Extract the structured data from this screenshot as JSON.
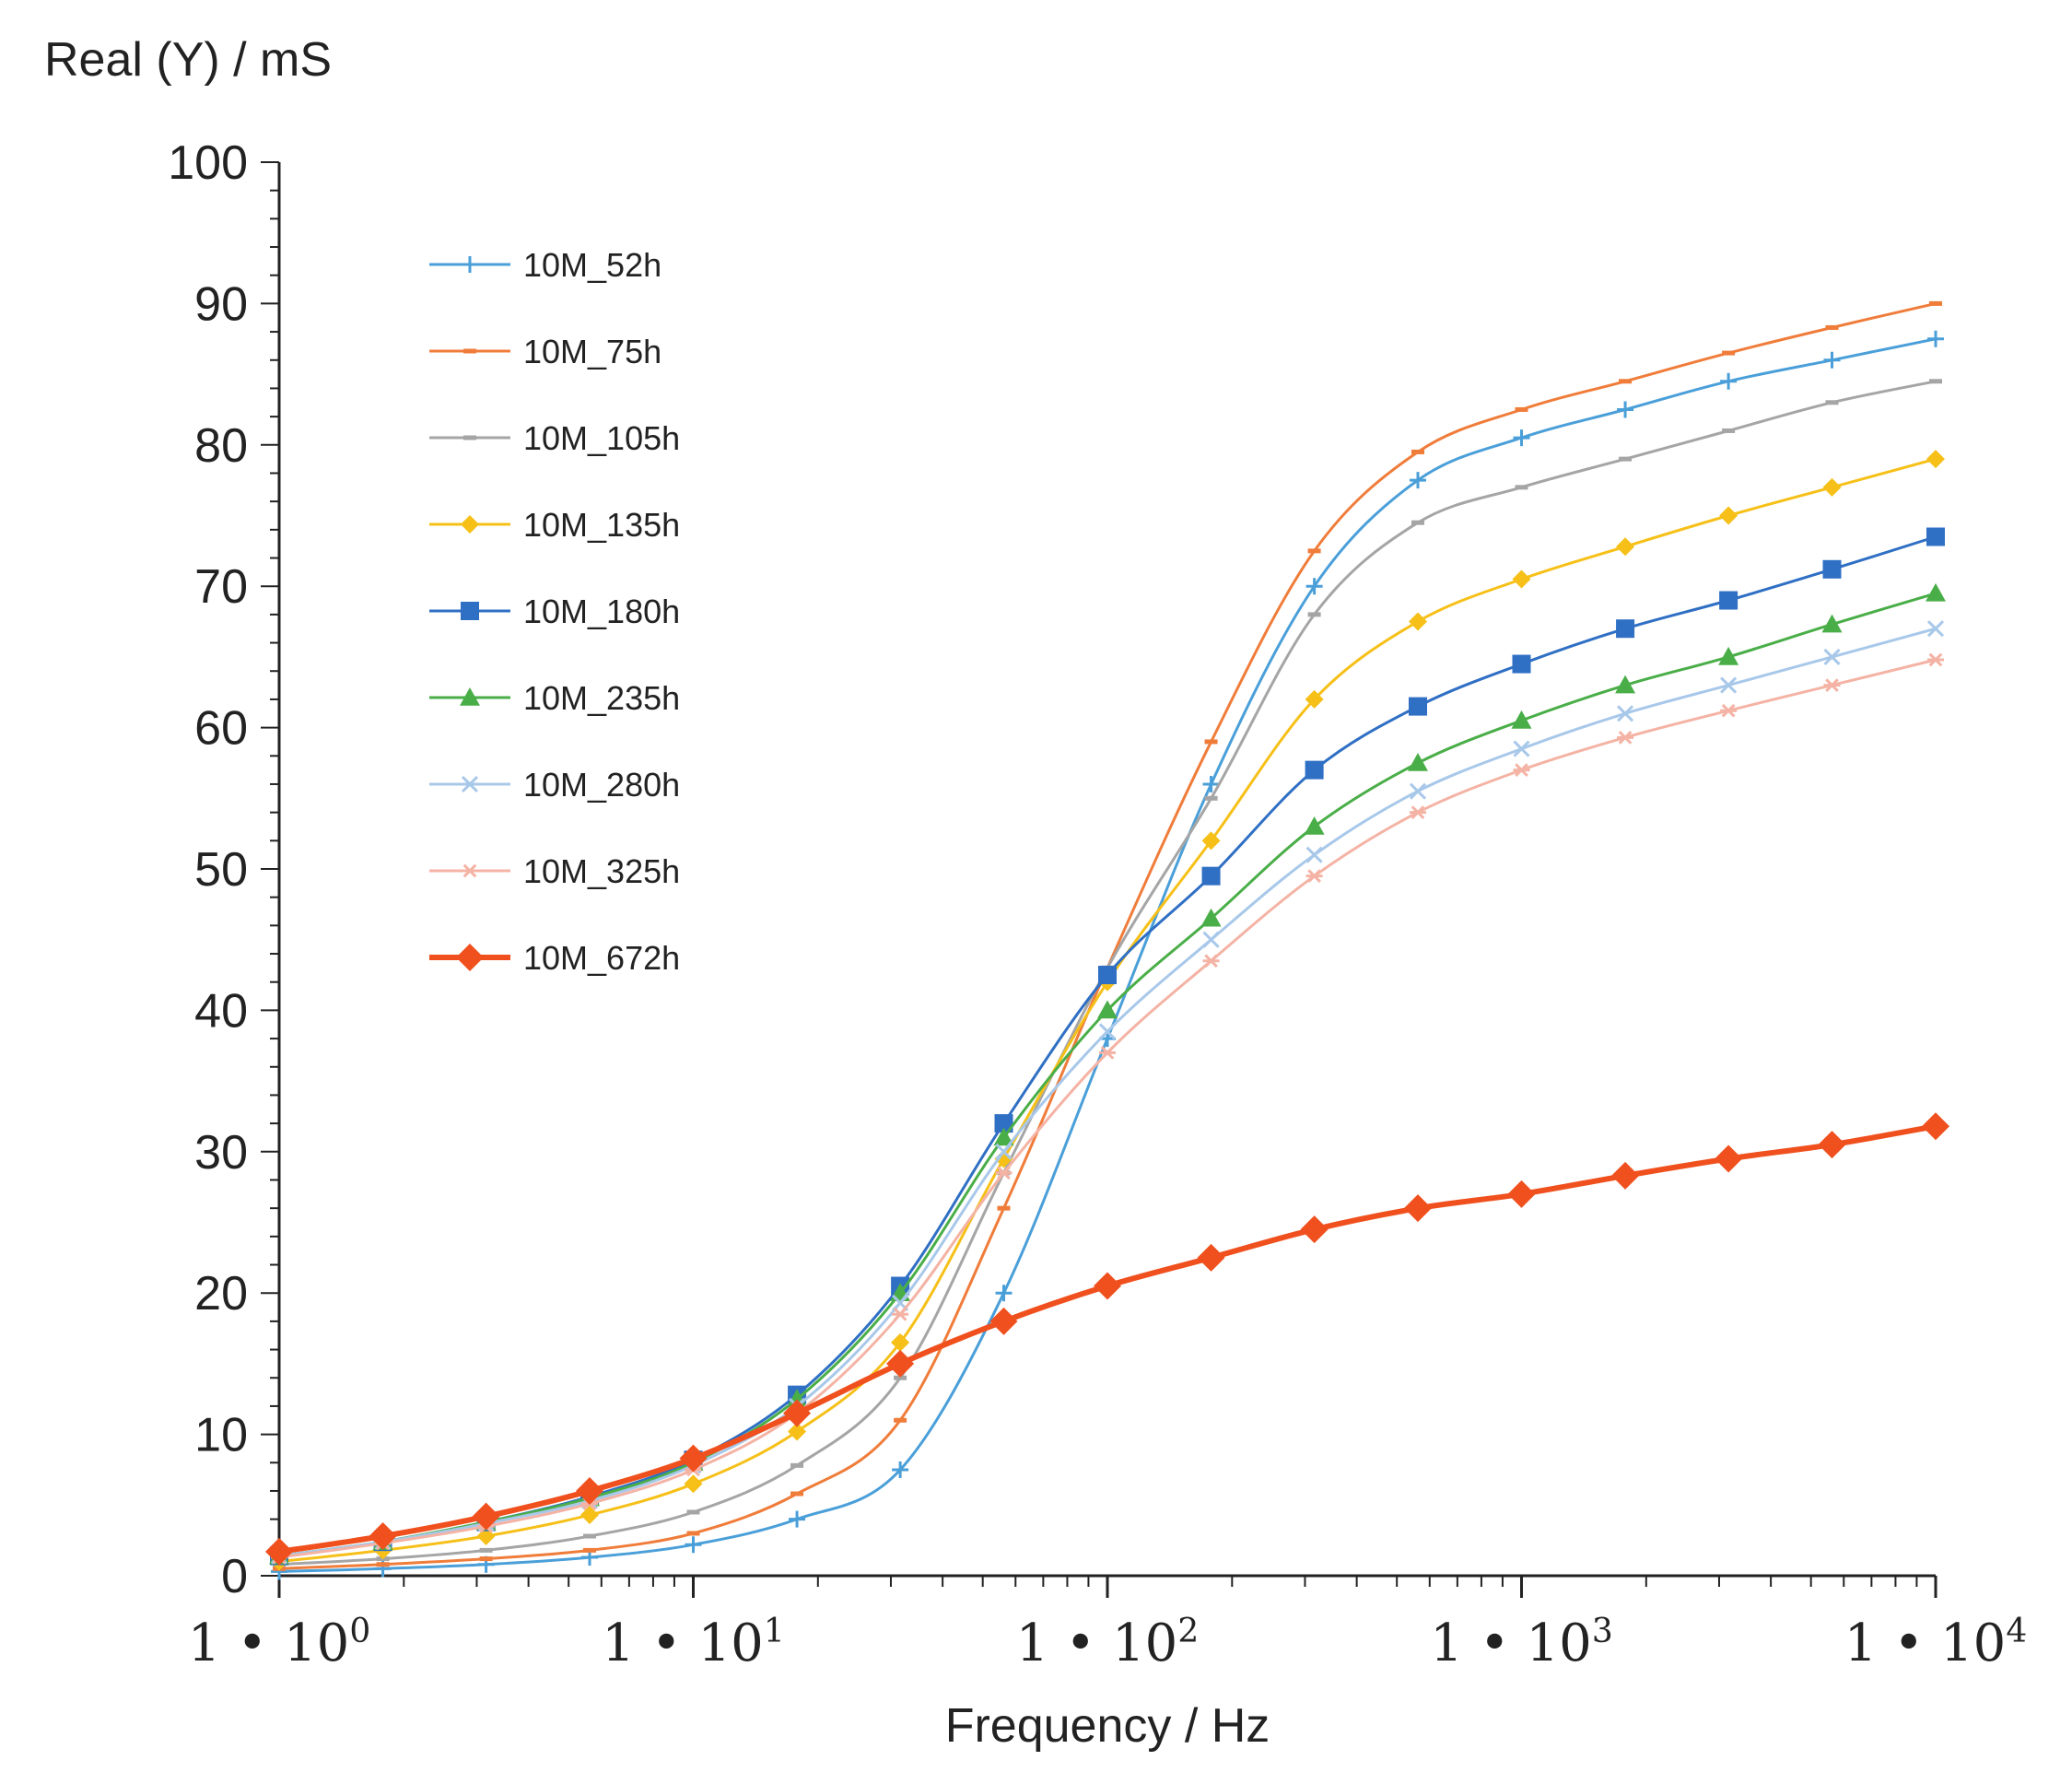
{
  "chart_data": {
    "type": "line",
    "title": "",
    "xlabel": "Frequency / Hz",
    "ylabel": "Real (Y) / mS",
    "x_scale": "log",
    "xlim": [
      1,
      10000
    ],
    "ylim": [
      0,
      100
    ],
    "x_ticks": [
      {
        "value": 1,
        "mantissa": "1 • 10",
        "exponent": "0"
      },
      {
        "value": 10,
        "mantissa": "1 • 10",
        "exponent": "1"
      },
      {
        "value": 100,
        "mantissa": "1 • 10",
        "exponent": "2"
      },
      {
        "value": 1000,
        "mantissa": "1 • 10",
        "exponent": "3"
      },
      {
        "value": 10000,
        "mantissa": "1 • 10",
        "exponent": "4"
      }
    ],
    "y_ticks": [
      {
        "value": 0,
        "label": "0"
      },
      {
        "value": 10,
        "label": "10"
      },
      {
        "value": 20,
        "label": "20"
      },
      {
        "value": 30,
        "label": "30"
      },
      {
        "value": 40,
        "label": "40"
      },
      {
        "value": 50,
        "label": "50"
      },
      {
        "value": 60,
        "label": "60"
      },
      {
        "value": 70,
        "label": "70"
      },
      {
        "value": 80,
        "label": "80"
      },
      {
        "value": 90,
        "label": "90"
      },
      {
        "value": 100,
        "label": "100"
      }
    ],
    "grid": false,
    "legend_position": "top-left",
    "x": [
      1,
      1.78,
      3.16,
      5.62,
      10,
      17.8,
      31.6,
      56.2,
      100,
      178,
      316,
      562,
      1000,
      1780,
      3160,
      5620,
      10000
    ],
    "series": [
      {
        "name": "10M_52h",
        "color": "#4a9fd9",
        "marker": "plus",
        "line_width": 3,
        "values": [
          0.3,
          0.5,
          0.8,
          1.3,
          2.2,
          4.0,
          7.5,
          20.0,
          38.0,
          56.0,
          70.0,
          77.5,
          80.5,
          82.5,
          84.5,
          86.0,
          87.5
        ]
      },
      {
        "name": "10M_75h",
        "color": "#f07c3a",
        "marker": "dash",
        "line_width": 3,
        "values": [
          0.5,
          0.8,
          1.2,
          1.8,
          3.0,
          5.8,
          11.0,
          26.0,
          43.0,
          59.0,
          72.5,
          79.5,
          82.5,
          84.5,
          86.5,
          88.3,
          90.0
        ]
      },
      {
        "name": "10M_105h",
        "color": "#a5a5a5",
        "marker": "dash",
        "line_width": 3,
        "values": [
          0.8,
          1.2,
          1.8,
          2.8,
          4.5,
          7.8,
          14.0,
          28.5,
          43.0,
          55.0,
          68.0,
          74.5,
          77.0,
          79.0,
          81.0,
          83.0,
          84.5
        ]
      },
      {
        "name": "10M_135h",
        "color": "#f6c018",
        "marker": "diamond",
        "line_width": 3,
        "values": [
          1.0,
          1.8,
          2.8,
          4.3,
          6.5,
          10.2,
          16.5,
          29.5,
          42.0,
          52.0,
          62.0,
          67.5,
          70.5,
          72.8,
          75.0,
          77.0,
          79.0
        ]
      },
      {
        "name": "10M_180h",
        "color": "#2f6fc4",
        "marker": "square",
        "line_width": 3,
        "values": [
          1.4,
          2.4,
          3.8,
          5.6,
          8.2,
          12.8,
          20.5,
          32.0,
          42.5,
          49.5,
          57.0,
          61.5,
          64.5,
          67.0,
          69.0,
          71.2,
          73.5
        ]
      },
      {
        "name": "10M_235h",
        "color": "#4aae48",
        "marker": "triangle",
        "line_width": 3,
        "values": [
          1.4,
          2.4,
          3.8,
          5.5,
          8.0,
          12.5,
          20.0,
          31.0,
          40.0,
          46.5,
          53.0,
          57.5,
          60.5,
          63.0,
          65.0,
          67.3,
          69.5
        ]
      },
      {
        "name": "10M_280h",
        "color": "#a8c8ea",
        "marker": "cross",
        "line_width": 3,
        "values": [
          1.4,
          2.4,
          3.7,
          5.3,
          7.8,
          12.0,
          19.3,
          30.0,
          38.5,
          45.0,
          51.0,
          55.5,
          58.5,
          61.0,
          63.0,
          65.0,
          67.0
        ]
      },
      {
        "name": "10M_325h",
        "color": "#f4b3a4",
        "marker": "star",
        "line_width": 3,
        "values": [
          1.3,
          2.3,
          3.5,
          5.1,
          7.5,
          11.5,
          18.5,
          28.5,
          37.0,
          43.5,
          49.5,
          54.0,
          57.0,
          59.3,
          61.2,
          63.0,
          64.8
        ]
      },
      {
        "name": "10M_672h",
        "color": "#f0501e",
        "marker": "big-diamond",
        "line_width": 6,
        "values": [
          1.7,
          2.8,
          4.2,
          6.0,
          8.3,
          11.5,
          15.0,
          18.0,
          20.5,
          22.5,
          24.5,
          26.0,
          27.0,
          28.3,
          29.5,
          30.5,
          31.8
        ]
      }
    ]
  }
}
